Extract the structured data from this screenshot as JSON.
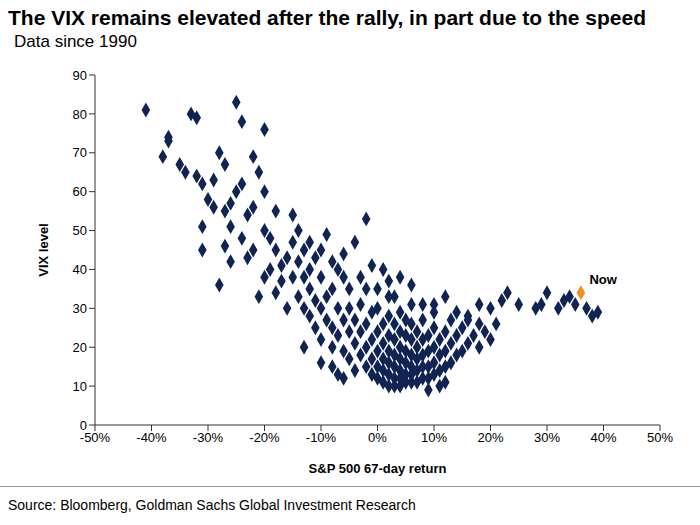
{
  "chart_data": {
    "type": "scatter",
    "title": "The VIX remains elevated after the rally, in part due to the speed",
    "subtitle": "Data since 1990",
    "x_label": "S&P 500 67-day return",
    "y_label": "VIX level",
    "source": "Source: Bloomberg, Goldman Sachs Global Investment Research",
    "color": "#0f2452",
    "marker": "diamond",
    "grid": false,
    "x": [
      -41,
      -37,
      -37,
      -38,
      -35,
      -34,
      -33,
      -32,
      -32,
      -31,
      -30,
      -31,
      -31,
      -29,
      -29,
      -28,
      -27,
      -27,
      -26,
      -26,
      -25,
      -24,
      -25,
      -24,
      -24,
      -23,
      -22,
      -22,
      -21,
      -20,
      -20,
      -20,
      -19,
      -18,
      -17,
      -16,
      -15,
      -15,
      -14,
      -13,
      -13,
      -12,
      -11,
      -10,
      -10,
      -9,
      -8,
      -8,
      -7,
      -6,
      -5,
      -4,
      -3,
      -2,
      -1,
      0,
      1,
      2,
      3,
      4,
      6,
      8,
      10,
      12,
      14,
      16,
      18,
      20,
      22,
      23,
      25,
      28,
      29,
      30,
      32,
      33,
      34,
      35,
      37,
      38,
      39,
      -27,
      -26,
      -23,
      -28,
      -15,
      -14,
      -14,
      -13,
      -13,
      -12,
      -12,
      -12,
      -11,
      -11,
      -10,
      -10,
      -10,
      -9,
      -9,
      -8,
      -8,
      -8,
      -7,
      -7,
      -7,
      -6,
      -6,
      -6,
      -6,
      -5,
      -5,
      -5,
      -4,
      -4,
      -4,
      -3,
      -3,
      -3,
      -2,
      -2,
      -2,
      -2,
      -1,
      -1,
      -1,
      -1,
      0,
      0,
      0,
      0,
      0,
      1,
      1,
      1,
      1,
      1,
      2,
      2,
      2,
      2,
      2,
      2,
      2,
      3,
      3,
      3,
      3,
      3,
      3,
      4,
      4,
      4,
      4,
      4,
      4,
      4,
      5,
      5,
      5,
      5,
      5,
      5,
      6,
      6,
      6,
      6,
      6,
      6,
      6,
      7,
      7,
      7,
      7,
      7,
      8,
      8,
      8,
      8,
      8,
      9,
      9,
      9,
      9,
      9,
      10,
      10,
      10,
      10,
      10,
      11,
      11,
      11,
      11,
      12,
      12,
      12,
      12,
      13,
      13,
      13,
      14,
      14,
      15,
      15,
      16,
      16,
      17,
      18,
      18,
      19,
      20,
      21,
      -16,
      -17,
      -18,
      -18,
      -19,
      -20,
      -21,
      -22
    ],
    "values": [
      81,
      74,
      73,
      69,
      67,
      65,
      80,
      79,
      64,
      62,
      58,
      51,
      45,
      56,
      63,
      70,
      67,
      55,
      57,
      51,
      83,
      78,
      60,
      62,
      48,
      54,
      69,
      56,
      65,
      76,
      60,
      50,
      48,
      55,
      41,
      43,
      54,
      47,
      50,
      45,
      38,
      47,
      43,
      45,
      38,
      49,
      42,
      35,
      40,
      44,
      35,
      47,
      38,
      53,
      41,
      35,
      40,
      37,
      33,
      38,
      36,
      31,
      31,
      33,
      29,
      28,
      31,
      30,
      32,
      34,
      31,
      30,
      31,
      34,
      30,
      32,
      33,
      31,
      30,
      28,
      29,
      46,
      42,
      43,
      36,
      38,
      33,
      42,
      30,
      20,
      28,
      35,
      40,
      32,
      25,
      30,
      22,
      16,
      27,
      33,
      25,
      20,
      15,
      30,
      23,
      13,
      27,
      19,
      12,
      38,
      24,
      30,
      17,
      21,
      27,
      14,
      18,
      24,
      31,
      15,
      20,
      26,
      35,
      13,
      17,
      22,
      29,
      12,
      15,
      19,
      24,
      30,
      11,
      14,
      17,
      21,
      26,
      10,
      13,
      16,
      19,
      23,
      28,
      33,
      10,
      12,
      15,
      18,
      22,
      26,
      10,
      12,
      14,
      17,
      20,
      24,
      29,
      11,
      13,
      16,
      19,
      23,
      27,
      11,
      13,
      15,
      18,
      22,
      26,
      31,
      11,
      14,
      17,
      20,
      24,
      12,
      15,
      18,
      22,
      27,
      9,
      12,
      15,
      19,
      23,
      13,
      16,
      20,
      25,
      29,
      10,
      14,
      18,
      22,
      11,
      15,
      19,
      24,
      16,
      21,
      27,
      18,
      23,
      19,
      25,
      21,
      27,
      23,
      20,
      26,
      24,
      22,
      26,
      30,
      37,
      34,
      45,
      40,
      38,
      33,
      45
    ],
    "xlim": [
      -50,
      50
    ],
    "xticks": [
      {
        "value": -50,
        "label": "-50%"
      },
      {
        "value": -40,
        "label": "-40%"
      },
      {
        "value": -30,
        "label": "-30%"
      },
      {
        "value": -20,
        "label": "-20%"
      },
      {
        "value": -10,
        "label": "-10%"
      },
      {
        "value": 0,
        "label": "0%"
      },
      {
        "value": 10,
        "label": "10%"
      },
      {
        "value": 20,
        "label": "20%"
      },
      {
        "value": 30,
        "label": "30%"
      },
      {
        "value": 40,
        "label": "40%"
      },
      {
        "value": 50,
        "label": "50%"
      }
    ],
    "ylim": [
      0,
      90
    ],
    "yticks": [
      0,
      10,
      20,
      30,
      40,
      50,
      60,
      70,
      80,
      90
    ],
    "annotations": [
      {
        "text": "Now",
        "x": 36,
        "y": 34,
        "color": "#f0901e",
        "marker": "diamond"
      }
    ]
  }
}
